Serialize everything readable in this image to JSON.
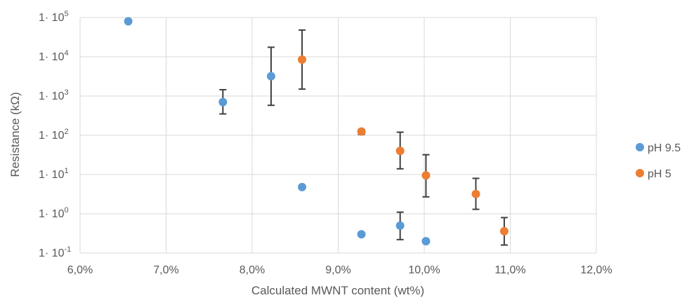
{
  "chart_data": {
    "type": "scatter",
    "xlabel": "Calculated MWNT content (wt%)",
    "ylabel": "Resistance (kΩ)",
    "xlim": [
      0.06,
      0.12
    ],
    "ylim": [
      0.1,
      100000
    ],
    "y_scale": "log",
    "grid": true,
    "legend_position": "right",
    "x_ticks": [
      "6,0%",
      "7,0%",
      "8,0%",
      "9,0%",
      "10,0%",
      "11,0%",
      "12,0%"
    ],
    "y_ticks": [
      {
        "base": "1· 10",
        "exp": "-1"
      },
      {
        "base": "1· 10",
        "exp": "0"
      },
      {
        "base": "1· 10",
        "exp": "1"
      },
      {
        "base": "1· 10",
        "exp": "2"
      },
      {
        "base": "1· 10",
        "exp": "3"
      },
      {
        "base": "1· 10",
        "exp": "4"
      },
      {
        "base": "1· 10",
        "exp": "5"
      }
    ],
    "series": [
      {
        "name": "pH 9.5",
        "color": "#5b9bd5",
        "points": [
          {
            "x": 0.0656,
            "y": 80000
          },
          {
            "x": 0.0766,
            "y": 700,
            "err_low": 350,
            "err_high": 1450
          },
          {
            "x": 0.0822,
            "y": 3200,
            "err_low": 580,
            "err_high": 17500
          },
          {
            "x": 0.0858,
            "y": 4.8
          },
          {
            "x": 0.0927,
            "y": 0.3
          },
          {
            "x": 0.0972,
            "y": 0.5,
            "err_low": 0.22,
            "err_high": 1.1
          },
          {
            "x": 0.1002,
            "y": 0.2
          }
        ]
      },
      {
        "name": "pH 5",
        "color": "#ed7d31",
        "points": [
          {
            "x": 0.0858,
            "y": 8500,
            "err_low": 1500,
            "err_high": 48000
          },
          {
            "x": 0.0927,
            "y": 125,
            "err_low": 105,
            "err_high": 140
          },
          {
            "x": 0.0972,
            "y": 40,
            "err_low": 14,
            "err_high": 120
          },
          {
            "x": 0.1002,
            "y": 9.5,
            "err_low": 2.7,
            "err_high": 32
          },
          {
            "x": 0.106,
            "y": 3.2,
            "err_low": 1.3,
            "err_high": 8
          },
          {
            "x": 0.1093,
            "y": 0.36,
            "err_low": 0.16,
            "err_high": 0.8
          }
        ]
      }
    ]
  }
}
